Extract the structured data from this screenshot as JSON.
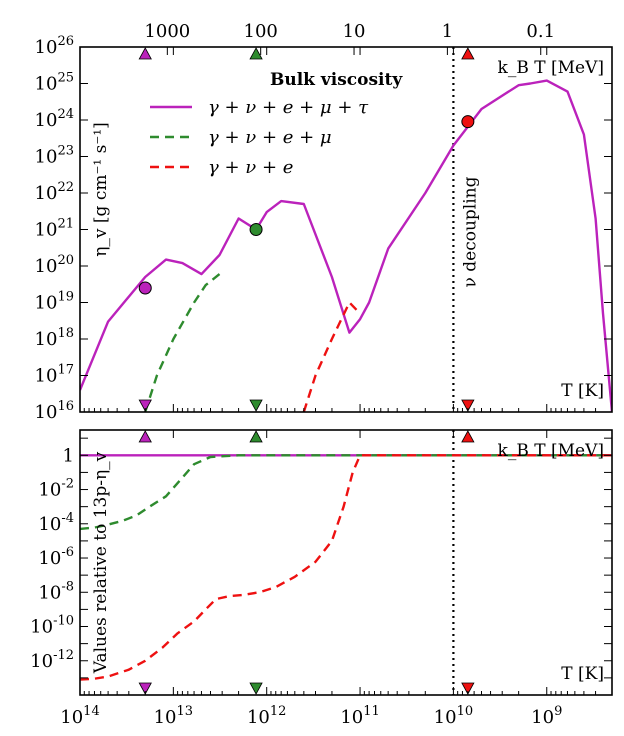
{
  "chart_data": [
    {
      "type": "line",
      "panel": "top",
      "title": "",
      "ylabel": "η_v [g cm⁻¹ s⁻¹]",
      "xlabel": "T [K]",
      "top_xlabel": "k_B T [MeV]",
      "x_scale": "log, reversed",
      "y_scale": "log",
      "xlim": [
        100000000000000.0,
        200000000.0
      ],
      "ylim": [
        1e+16,
        1e+26
      ],
      "y_tick_labels": [
        "10^16",
        "10^17",
        "10^18",
        "10^19",
        "10^20",
        "10^21",
        "10^22",
        "10^23",
        "10^24",
        "10^25",
        "10^26"
      ],
      "top_tick_labels": [
        "1000",
        "100",
        "10",
        "1",
        "0.1"
      ],
      "top_tick_values_MeV": [
        1000,
        100,
        10,
        1,
        0.1
      ],
      "legend_title": "Bulk viscosity",
      "legend_placement": "upper-center",
      "vertical_line": {
        "x": 10000000000.0,
        "label": "ν decoupling",
        "style": "dotted"
      },
      "series": [
        {
          "name": "γ + ν + e + μ + τ",
          "color": "#bb22bb",
          "style": "solid",
          "x": [
            100000000000000.0,
            50000000000000.0,
            20000000000000.0,
            12000000000000.0,
            8000000000000.0,
            5000000000000.0,
            3200000000000.0,
            2000000000000.0,
            1300000000000.0,
            1000000000000.0,
            700000000000.0,
            400000000000.0,
            200000000000.0,
            130000000000.0,
            100000000000.0,
            80000000000.0,
            50000000000.0,
            20000000000.0,
            10000000000.0,
            5000000000.0,
            2000000000.0,
            1500000000.0,
            1000000000.0,
            600000000.0,
            400000000.0,
            300000000.0,
            250000000.0,
            200000000.0
          ],
          "y": [
            4e+16,
            3e+18,
            5e+19,
            1.5e+20,
            1.2e+20,
            6e+19,
            2e+20,
            2e+21,
            1e+21,
            3e+21,
            6e+21,
            5e+21,
            5e+19,
            1.5e+18,
            3.5e+18,
            1e+19,
            3e+20,
            1e+22,
            2e+23,
            2e+24,
            9e+24,
            1e+25,
            1.2e+25,
            6e+24,
            4e+23,
            2e+21,
            5e+18,
            1e+16
          ]
        },
        {
          "name": "γ + ν + e + μ",
          "color": "#2e8b2e",
          "style": "dashed",
          "x": [
            20000000000000.0,
            15000000000000.0,
            10000000000000.0,
            6000000000000.0,
            4500000000000.0,
            3200000000000.0
          ],
          "y": [
            1e+16,
            1e+17,
            1e+18,
            1e+19,
            3e+19,
            6e+19
          ]
        },
        {
          "name": "γ + ν + e",
          "color": "#ee1111",
          "style": "dashed",
          "x": [
            400000000000.0,
            300000000000.0,
            200000000000.0,
            130000000000.0,
            100000000000.0
          ],
          "y": [
            1e+16,
            1e+17,
            1e+18,
            1e+19,
            5e+18
          ]
        }
      ],
      "markers": [
        {
          "x": 20000000000000.0,
          "y": 2.5e+19,
          "color": "#bb22bb"
        },
        {
          "x": 1300000000000.0,
          "y": 1e+21,
          "color": "#2e8b2e"
        },
        {
          "x": 7000000000.0,
          "y": 9e+23,
          "color": "#ee1111"
        }
      ],
      "triangle_markers_x": [
        20000000000000.0,
        1300000000000.0,
        7000000000.0
      ],
      "triangle_colors": [
        "#bb22bb",
        "#2e8b2e",
        "#ee1111"
      ]
    },
    {
      "type": "line",
      "panel": "bottom",
      "ylabel": "Values relative to 13p-η_v",
      "xlabel": "T [K]",
      "top_xlabel": "k_B T [MeV]",
      "x_scale": "log, reversed",
      "y_scale": "log",
      "xlim": [
        100000000000000.0,
        200000000.0
      ],
      "ylim": [
        1e-14,
        30
      ],
      "y_tick_labels": [
        "1",
        "10^-2",
        "10^-4",
        "10^-6",
        "10^-8",
        "10^-10",
        "10^-12"
      ],
      "x_tick_labels": [
        "10^14",
        "10^13",
        "10^12",
        "10^11",
        "10^10",
        "10^9"
      ],
      "vertical_line": {
        "x": 10000000000.0,
        "style": "dotted"
      },
      "series": [
        {
          "name": "γ + ν + e + μ + τ",
          "color": "#bb22bb",
          "style": "solid",
          "x": [
            100000000000000.0,
            200000000.0
          ],
          "y": [
            1,
            1
          ]
        },
        {
          "name": "γ + ν + e + μ",
          "color": "#2e8b2e",
          "style": "dashed",
          "x": [
            100000000000000.0,
            70000000000000.0,
            50000000000000.0,
            35000000000000.0,
            25000000000000.0,
            18000000000000.0,
            12000000000000.0,
            8000000000000.0,
            6000000000000.0,
            4000000000000.0,
            2000000000000.0,
            200000000.0
          ],
          "y": [
            5e-05,
            6e-05,
            9e-05,
            0.00015,
            0.0003,
            0.001,
            0.004,
            0.05,
            0.3,
            0.8,
            1,
            1
          ]
        },
        {
          "name": "γ + ν + e",
          "color": "#ee1111",
          "style": "dashed",
          "x": [
            100000000000000.0,
            70000000000000.0,
            50000000000000.0,
            30000000000000.0,
            20000000000000.0,
            13000000000000.0,
            9000000000000.0,
            6000000000000.0,
            4500000000000.0,
            3500000000000.0,
            2500000000000.0,
            1800000000000.0,
            1200000000000.0,
            800000000000.0,
            500000000000.0,
            300000000000.0,
            200000000000.0,
            150000000000.0,
            120000000000.0,
            100000000000.0,
            200000000.0
          ],
          "y": [
            8e-14,
            9e-14,
            1.2e-13,
            3e-13,
            1e-12,
            6e-12,
            4e-11,
            2e-10,
            1e-09,
            4e-09,
            6e-09,
            7e-09,
            1e-08,
            2e-08,
            8e-08,
            6e-07,
            1e-05,
            0.001,
            0.1,
            1,
            1
          ]
        }
      ],
      "triangle_markers_x": [
        20000000000000.0,
        1300000000000.0,
        7000000000.0
      ],
      "triangle_colors": [
        "#bb22bb",
        "#2e8b2e",
        "#ee1111"
      ]
    }
  ]
}
